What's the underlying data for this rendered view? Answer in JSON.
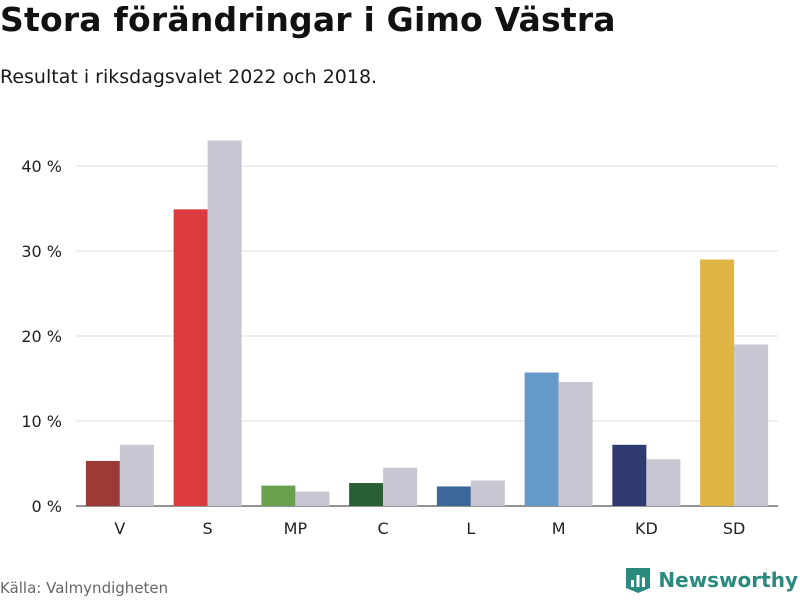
{
  "header": {
    "title": "Stora förändringar i Gimo Västra",
    "subtitle": "Resultat i riksdagsvalet 2022 och 2018."
  },
  "footer": {
    "source": "Källa: Valmyndigheten",
    "brand": "Newsworthy",
    "brand_color": "#2b8a7e",
    "brand_icon": "bar-chart-logo-icon"
  },
  "chart_data": {
    "type": "bar",
    "categories": [
      "V",
      "S",
      "MP",
      "C",
      "L",
      "M",
      "KD",
      "SD"
    ],
    "series": [
      {
        "values": [
          5.3,
          34.9,
          2.4,
          2.7,
          2.3,
          15.7,
          7.2,
          29.0
        ],
        "colors": [
          "#9b3a37",
          "#dd3a40",
          "#68a04d",
          "#2a5e35",
          "#3d6799",
          "#6599c7",
          "#2f3b70",
          "#dfb445"
        ]
      },
      {
        "values": [
          7.2,
          43.0,
          1.7,
          4.5,
          3.0,
          14.6,
          5.5,
          19.0
        ],
        "color": "#c7c6d2"
      }
    ],
    "yticks": [
      "0 %",
      "10 %",
      "20 %",
      "30 %",
      "40 %"
    ],
    "ytick_values": [
      0,
      10,
      20,
      30,
      40
    ],
    "ylim": [
      0,
      43.5
    ],
    "grid": true,
    "gridline_color": "#dddddd",
    "legend": "none"
  }
}
